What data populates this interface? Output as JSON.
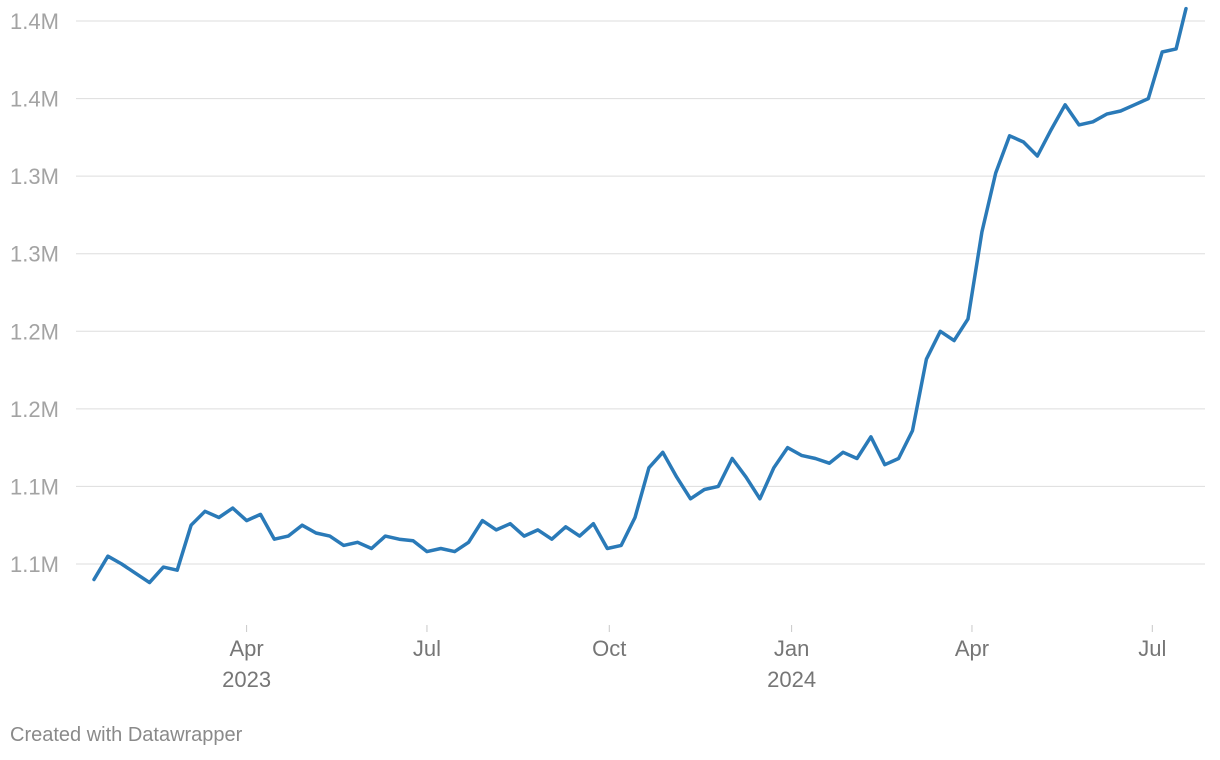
{
  "footer": {
    "credit": "Created with Datawrapper"
  },
  "chart_data": {
    "type": "line",
    "title": "",
    "xlabel": "",
    "ylabel": "",
    "grid": "horizontal",
    "legend": "none",
    "line_color": "#2a7ab8",
    "grid_color": "#dddddd",
    "x_range": [
      "2023-01-14",
      "2024-07-18"
    ],
    "y_range": [
      1036000,
      1410000
    ],
    "y_ticks": [
      {
        "value": 1400000,
        "label": "1.4M"
      },
      {
        "value": 1350000,
        "label": "1.4M"
      },
      {
        "value": 1300000,
        "label": "1.3M"
      },
      {
        "value": 1250000,
        "label": "1.3M"
      },
      {
        "value": 1200000,
        "label": "1.2M"
      },
      {
        "value": 1150000,
        "label": "1.2M"
      },
      {
        "value": 1100000,
        "label": "1.1M"
      },
      {
        "value": 1050000,
        "label": "1.1M"
      }
    ],
    "x_ticks": [
      {
        "date": "2023-04-01",
        "label": "Apr",
        "year": "2023"
      },
      {
        "date": "2023-07-01",
        "label": "Jul",
        "year": ""
      },
      {
        "date": "2023-10-01",
        "label": "Oct",
        "year": ""
      },
      {
        "date": "2024-01-01",
        "label": "Jan",
        "year": "2024"
      },
      {
        "date": "2024-04-01",
        "label": "Apr",
        "year": ""
      },
      {
        "date": "2024-07-01",
        "label": "Jul",
        "year": ""
      }
    ],
    "series": [
      {
        "x": [
          "2023-01-14",
          "2023-01-21",
          "2023-01-28",
          "2023-02-04",
          "2023-02-11",
          "2023-02-18",
          "2023-02-25",
          "2023-03-04",
          "2023-03-11",
          "2023-03-18",
          "2023-03-25",
          "2023-04-01",
          "2023-04-08",
          "2023-04-15",
          "2023-04-22",
          "2023-04-29",
          "2023-05-06",
          "2023-05-13",
          "2023-05-20",
          "2023-05-27",
          "2023-06-03",
          "2023-06-10",
          "2023-06-17",
          "2023-06-24",
          "2023-07-01",
          "2023-07-08",
          "2023-07-15",
          "2023-07-22",
          "2023-07-29",
          "2023-08-05",
          "2023-08-12",
          "2023-08-19",
          "2023-08-26",
          "2023-09-02",
          "2023-09-09",
          "2023-09-16",
          "2023-09-23",
          "2023-09-30",
          "2023-10-07",
          "2023-10-14",
          "2023-10-21",
          "2023-10-28",
          "2023-11-04",
          "2023-11-11",
          "2023-11-18",
          "2023-11-25",
          "2023-12-02",
          "2023-12-09",
          "2023-12-16",
          "2023-12-23",
          "2023-12-30",
          "2024-01-06",
          "2024-01-13",
          "2024-01-20",
          "2024-01-27",
          "2024-02-03",
          "2024-02-10",
          "2024-02-17",
          "2024-02-24",
          "2024-03-02",
          "2024-03-09",
          "2024-03-16",
          "2024-03-23",
          "2024-03-30",
          "2024-04-06",
          "2024-04-13",
          "2024-04-20",
          "2024-04-27",
          "2024-05-04",
          "2024-05-11",
          "2024-05-18",
          "2024-05-25",
          "2024-06-01",
          "2024-06-08",
          "2024-06-15",
          "2024-06-22",
          "2024-06-29",
          "2024-07-06",
          "2024-07-13",
          "2024-07-18"
        ],
        "values": [
          1040000,
          1055000,
          1050000,
          1044000,
          1038000,
          1048000,
          1046000,
          1075000,
          1084000,
          1080000,
          1086000,
          1078000,
          1082000,
          1066000,
          1068000,
          1075000,
          1070000,
          1068000,
          1062000,
          1064000,
          1060000,
          1068000,
          1066000,
          1065000,
          1058000,
          1060000,
          1058000,
          1064000,
          1078000,
          1072000,
          1076000,
          1068000,
          1072000,
          1066000,
          1074000,
          1068000,
          1076000,
          1060000,
          1062000,
          1080000,
          1112000,
          1122000,
          1106000,
          1092000,
          1098000,
          1100000,
          1118000,
          1106000,
          1092000,
          1112000,
          1125000,
          1120000,
          1118000,
          1115000,
          1122000,
          1118000,
          1132000,
          1114000,
          1118000,
          1136000,
          1182000,
          1200000,
          1194000,
          1208000,
          1264000,
          1302000,
          1326000,
          1322000,
          1313000,
          1330000,
          1346000,
          1333000,
          1335000,
          1340000,
          1342000,
          1346000,
          1350000,
          1380000,
          1382000,
          1408000
        ]
      }
    ]
  }
}
